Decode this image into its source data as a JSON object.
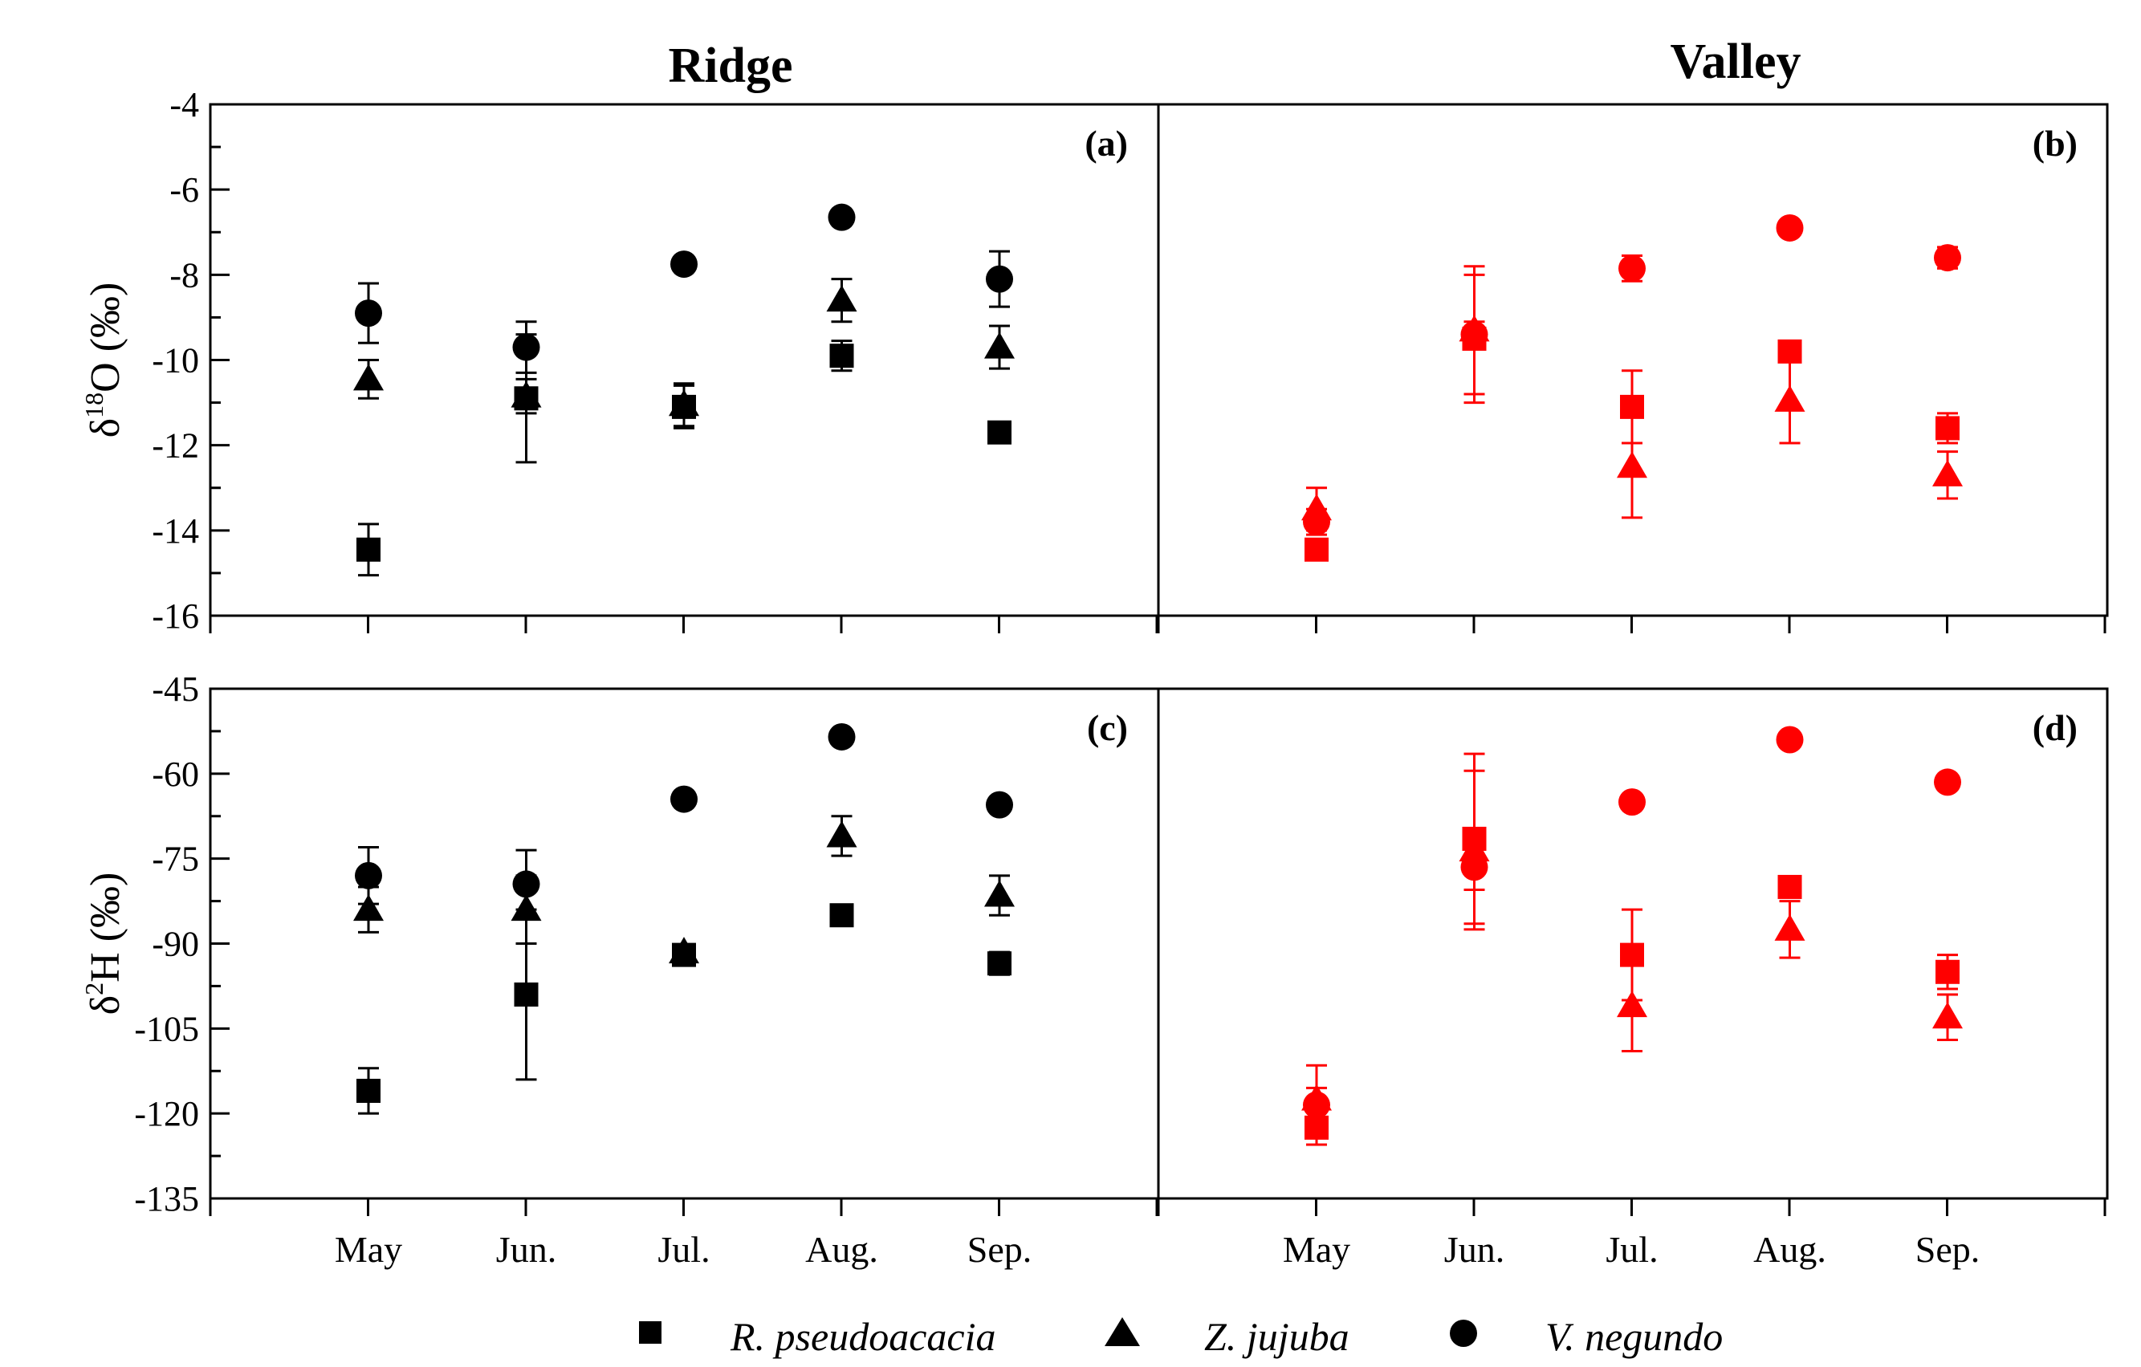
{
  "chart_data": {
    "type": "scatter",
    "columns": [
      "Ridge",
      "Valley"
    ],
    "legend": {
      "placement": "bottom",
      "entries": [
        {
          "label": "R. pseudoacacia",
          "marker": "square"
        },
        {
          "label": "Z. jujuba",
          "marker": "triangle"
        },
        {
          "label": "V. negundo",
          "marker": "circle"
        }
      ]
    },
    "x_categories": [
      "May",
      "Jun.",
      "Jul.",
      "Aug.",
      "Sep."
    ],
    "colors": {
      "ridge": "#000000",
      "valley": "#ff0000"
    },
    "rows": [
      {
        "ylabel_main": "δ",
        "ylabel_sup": "18",
        "ylabel_rest": "O (‰)",
        "ylim": [
          -16,
          -4
        ],
        "yticks": [
          -16,
          -14,
          -12,
          -10,
          -8,
          -6,
          -4
        ],
        "tick_labels": [
          "-16",
          "-14",
          "-12",
          "-10",
          "-8",
          "-6",
          "-4"
        ],
        "minor_step": 1
      },
      {
        "ylabel_main": "δ",
        "ylabel_sup": "2",
        "ylabel_rest": "H (‰)",
        "ylim": [
          -135,
          -45
        ],
        "yticks": [
          -135,
          -120,
          -105,
          -90,
          -75,
          -60,
          -45
        ],
        "tick_labels": [
          "-135",
          "-120",
          "-105",
          "-90",
          "-75",
          "-60",
          "-45"
        ],
        "minor_step": 7.5
      }
    ],
    "panels": [
      {
        "label": "(a)",
        "row": 0,
        "col": 0,
        "color": "#000000",
        "series": [
          {
            "marker": "square",
            "y": [
              -14.45,
              -10.9,
              -11.1,
              -9.9,
              -11.7
            ],
            "err": [
              0.6,
              1.5,
              0.5,
              0.35,
              0.15
            ]
          },
          {
            "marker": "triangle",
            "y": [
              -10.45,
              -10.85,
              -11.05,
              -8.6,
              -9.7
            ],
            "err": [
              0.45,
              0.4,
              0.5,
              0.5,
              0.5
            ]
          },
          {
            "marker": "circle",
            "y": [
              -8.9,
              -9.7,
              -7.75,
              -6.65,
              -8.1
            ],
            "err": [
              0.7,
              0.6,
              0,
              0,
              0.65
            ]
          }
        ]
      },
      {
        "label": "(b)",
        "row": 0,
        "col": 1,
        "color": "#ff0000",
        "series": [
          {
            "marker": "square",
            "y": [
              -14.45,
              -9.5,
              -11.1,
              -9.8,
              -11.6
            ],
            "err": [
              0.15,
              1.5,
              0.85,
              0.2,
              0.35
            ]
          },
          {
            "marker": "triangle",
            "y": [
              -13.5,
              -9.3,
              -12.5,
              -10.95,
              -12.7
            ],
            "err": [
              0.5,
              1.5,
              1.2,
              1.0,
              0.55
            ]
          },
          {
            "marker": "circle",
            "y": [
              -13.8,
              -9.4,
              -7.85,
              -6.9,
              -7.6
            ],
            "err": [
              0.3,
              0.3,
              0.3,
              0,
              0.25
            ]
          }
        ]
      },
      {
        "label": "(c)",
        "row": 1,
        "col": 0,
        "color": "#000000",
        "series": [
          {
            "marker": "square",
            "y": [
              -116,
              -99,
              -92,
              -85,
              -93.5
            ],
            "err": [
              4,
              15,
              1.5,
              1,
              2
            ]
          },
          {
            "marker": "triangle",
            "y": [
              -84,
              -84,
              -91.5,
              -71,
              -81.5
            ],
            "err": [
              4,
              6,
              1,
              3.5,
              3.5
            ]
          },
          {
            "marker": "circle",
            "y": [
              -78,
              -79.5,
              -64.5,
              -53.5,
              -65.5
            ],
            "err": [
              5,
              6,
              0,
              0,
              0
            ]
          }
        ]
      },
      {
        "label": "(d)",
        "row": 1,
        "col": 1,
        "color": "#ff0000",
        "series": [
          {
            "marker": "square",
            "y": [
              -122.5,
              -71.5,
              -92,
              -80,
              -95
            ],
            "err": [
              3,
              15,
              8,
              1,
              3
            ]
          },
          {
            "marker": "triangle",
            "y": [
              -117.5,
              -73.5,
              -101,
              -87.5,
              -103
            ],
            "err": [
              6,
              14,
              8,
              5,
              4
            ]
          },
          {
            "marker": "circle",
            "y": [
              -118.5,
              -76.5,
              -65,
              -54,
              -61.5
            ],
            "err": [
              3,
              4,
              1,
              0,
              0
            ]
          }
        ]
      }
    ]
  }
}
